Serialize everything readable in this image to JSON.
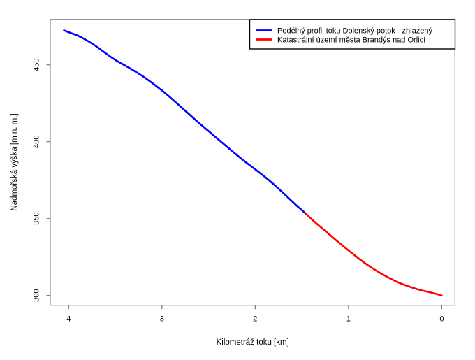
{
  "page": {
    "background": "#ffffff"
  },
  "chart_data": {
    "type": "line",
    "title": "",
    "xlabel": "Kilometráž toku [km]",
    "ylabel": "Nadmořská výška [m n. m.]",
    "x_ticks": [
      4,
      3,
      2,
      1,
      0
    ],
    "y_ticks": [
      300,
      350,
      400,
      450
    ],
    "x_tick_labels": [
      "4",
      "3",
      "2",
      "1",
      "0"
    ],
    "y_tick_labels": [
      "300",
      "350",
      "400",
      "450"
    ],
    "xlim": [
      4.2,
      -0.16
    ],
    "x_axis_reversed": true,
    "ylim": [
      293.5,
      479.5
    ],
    "grid": false,
    "legend_position": "top-right",
    "legend_border_color": "#000000",
    "axis_box_color": "#888888",
    "tick_color": "#777777",
    "series": [
      {
        "name": "Podélný profil toku Dolenský potok - zhlazený",
        "color": "#0000ff",
        "points": [
          [
            4.05,
            472.4
          ],
          [
            4.02,
            471.7
          ],
          [
            4.0,
            471.2
          ],
          [
            3.95,
            470.1
          ],
          [
            3.9,
            468.9
          ],
          [
            3.85,
            467.4
          ],
          [
            3.8,
            465.7
          ],
          [
            3.75,
            463.8
          ],
          [
            3.7,
            461.8
          ],
          [
            3.65,
            459.6
          ],
          [
            3.6,
            457.4
          ],
          [
            3.55,
            455.2
          ],
          [
            3.5,
            453.2
          ],
          [
            3.45,
            451.4
          ],
          [
            3.4,
            449.7
          ],
          [
            3.35,
            448.0
          ],
          [
            3.3,
            446.2
          ],
          [
            3.25,
            444.3
          ],
          [
            3.2,
            442.3
          ],
          [
            3.15,
            440.2
          ],
          [
            3.1,
            438.0
          ],
          [
            3.05,
            435.7
          ],
          [
            3.0,
            433.3
          ],
          [
            2.95,
            430.8
          ],
          [
            2.9,
            428.2
          ],
          [
            2.85,
            425.5
          ],
          [
            2.8,
            422.8
          ],
          [
            2.75,
            420.1
          ],
          [
            2.7,
            417.4
          ],
          [
            2.65,
            414.7
          ],
          [
            2.6,
            412.0
          ],
          [
            2.55,
            409.4
          ],
          [
            2.5,
            406.9
          ],
          [
            2.45,
            404.3
          ],
          [
            2.4,
            401.7
          ],
          [
            2.35,
            399.2
          ],
          [
            2.3,
            396.6
          ],
          [
            2.25,
            394.0
          ],
          [
            2.2,
            391.5
          ],
          [
            2.15,
            389.0
          ],
          [
            2.1,
            386.6
          ],
          [
            2.05,
            384.3
          ],
          [
            2.0,
            382.0
          ],
          [
            1.95,
            379.7
          ],
          [
            1.9,
            377.3
          ],
          [
            1.85,
            374.8
          ],
          [
            1.8,
            372.2
          ],
          [
            1.75,
            369.5
          ],
          [
            1.7,
            366.7
          ],
          [
            1.65,
            363.8
          ],
          [
            1.6,
            360.9
          ],
          [
            1.55,
            358.2
          ],
          [
            1.5,
            355.6
          ],
          [
            1.46,
            353.3
          ]
        ]
      },
      {
        "name": "Katastrální území města Brandýs nad Orlicí",
        "color": "#ff0000",
        "points": [
          [
            1.46,
            353.3
          ],
          [
            1.4,
            349.8
          ],
          [
            1.35,
            347.2
          ],
          [
            1.3,
            344.6
          ],
          [
            1.25,
            342.0
          ],
          [
            1.2,
            339.4
          ],
          [
            1.15,
            336.8
          ],
          [
            1.1,
            334.3
          ],
          [
            1.05,
            331.8
          ],
          [
            1.0,
            329.3
          ],
          [
            0.95,
            326.9
          ],
          [
            0.9,
            324.5
          ],
          [
            0.85,
            322.2
          ],
          [
            0.8,
            320.0
          ],
          [
            0.75,
            318.0
          ],
          [
            0.7,
            316.1
          ],
          [
            0.65,
            314.3
          ],
          [
            0.6,
            312.6
          ],
          [
            0.55,
            311.0
          ],
          [
            0.5,
            309.5
          ],
          [
            0.45,
            308.1
          ],
          [
            0.4,
            306.9
          ],
          [
            0.35,
            305.8
          ],
          [
            0.3,
            304.8
          ],
          [
            0.25,
            303.9
          ],
          [
            0.2,
            303.1
          ],
          [
            0.15,
            302.4
          ],
          [
            0.1,
            301.7
          ],
          [
            0.05,
            300.9
          ],
          [
            0.0,
            300.0
          ]
        ]
      }
    ]
  }
}
